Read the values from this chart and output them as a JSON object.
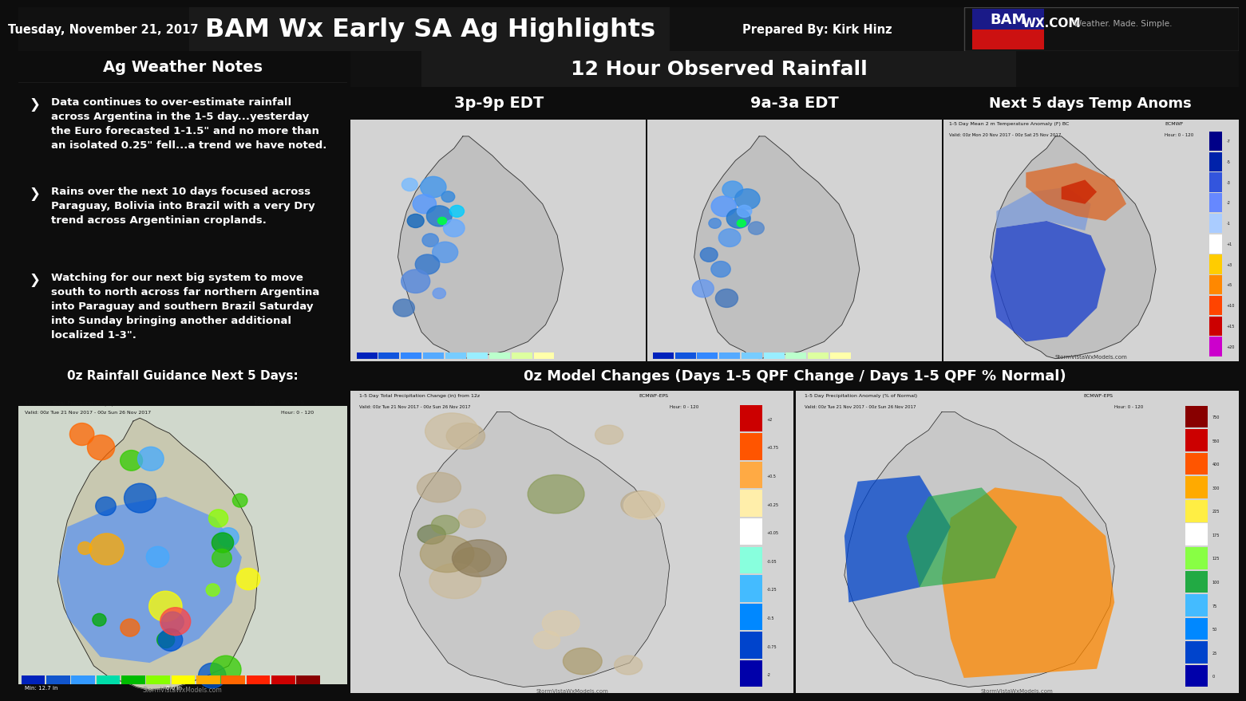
{
  "title": "BAM Wx Early SA Ag Highlights",
  "date": "Tuesday, November 21, 2017",
  "prepared_by": "Prepared By: Kirk Hinz",
  "bg_color": "#0d0d0d",
  "header_bg": "#111111",
  "dark_bar": "#0a0a0a",
  "mid_bar": "#1c1c1c",
  "panel_bg": "#111111",
  "map_bg": "#c8c8c8",
  "ag_notes_title": "Ag Weather Notes",
  "ag_notes_bullets": [
    "Data continues to over-estimate rainfall\nacross Argentina in the 1-5 day...yesterday\nthe Euro forecasted 1-1.5\" and no more than\nan isolated 0.25\" fell...a trend we have noted.",
    "Rains over the next 10 days focused across\nParaguay, Bolivia into Brazil with a very Dry\ntrend across Argentinian croplands.",
    "Watching for our next big system to move\nsouth to north across far northern Argentina\ninto Paraguay and southern Brazil Saturday\ninto Sunday bringing another additional\nlocalized 1-3\"."
  ],
  "observed_rainfall_title": "12 Hour Observed Rainfall",
  "map1_label": "3p-9p EDT",
  "map2_label": "9a-3a EDT",
  "map3_label": "Next 5 days Temp Anoms",
  "bottom_left_title": "0z Rainfall Guidance Next 5 Days:",
  "bottom_right_title": "0z Model Changes (Days 1-5 QPF Change / Days 1-5 QPF % Normal)",
  "wxcom_text": "WX.COM",
  "weather_tagline": "Weather. Made. Simple."
}
